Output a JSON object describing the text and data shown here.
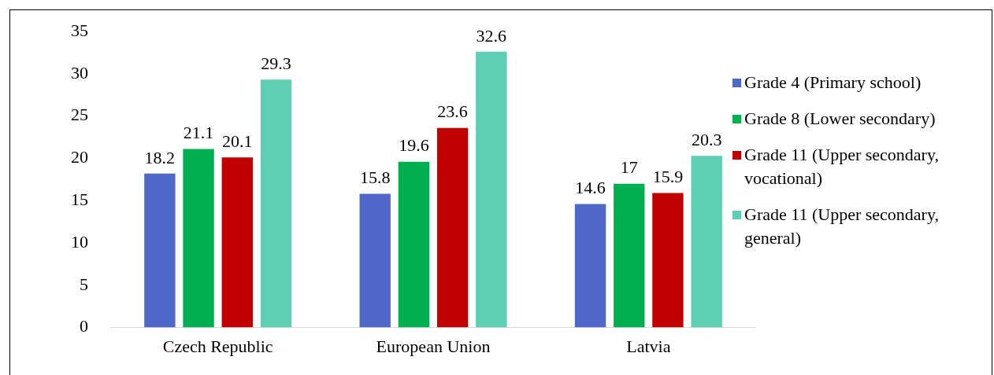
{
  "chart_data": {
    "type": "bar",
    "categories": [
      "Czech Republic",
      "European Union",
      "Latvia"
    ],
    "series": [
      {
        "name": "Grade 4 (Primary school)",
        "color": "#5068c8",
        "values": [
          18.2,
          15.8,
          14.6
        ]
      },
      {
        "name": "Grade 8 (Lower secondary)",
        "color": "#00b050",
        "values": [
          21.1,
          19.6,
          17
        ]
      },
      {
        "name": "Grade 11 (Upper secondary, vocational)",
        "color": "#c00000",
        "values": [
          20.1,
          23.6,
          15.9
        ]
      },
      {
        "name": "Grade 11 (Upper secondary, general)",
        "color": "#5ecfb2",
        "values": [
          29.3,
          32.6,
          20.3
        ]
      }
    ],
    "ylim": [
      0,
      35
    ],
    "yticks": [
      0,
      5,
      10,
      15,
      20,
      25,
      30,
      35
    ],
    "grid": false,
    "legend": "right",
    "data_labels": true
  }
}
